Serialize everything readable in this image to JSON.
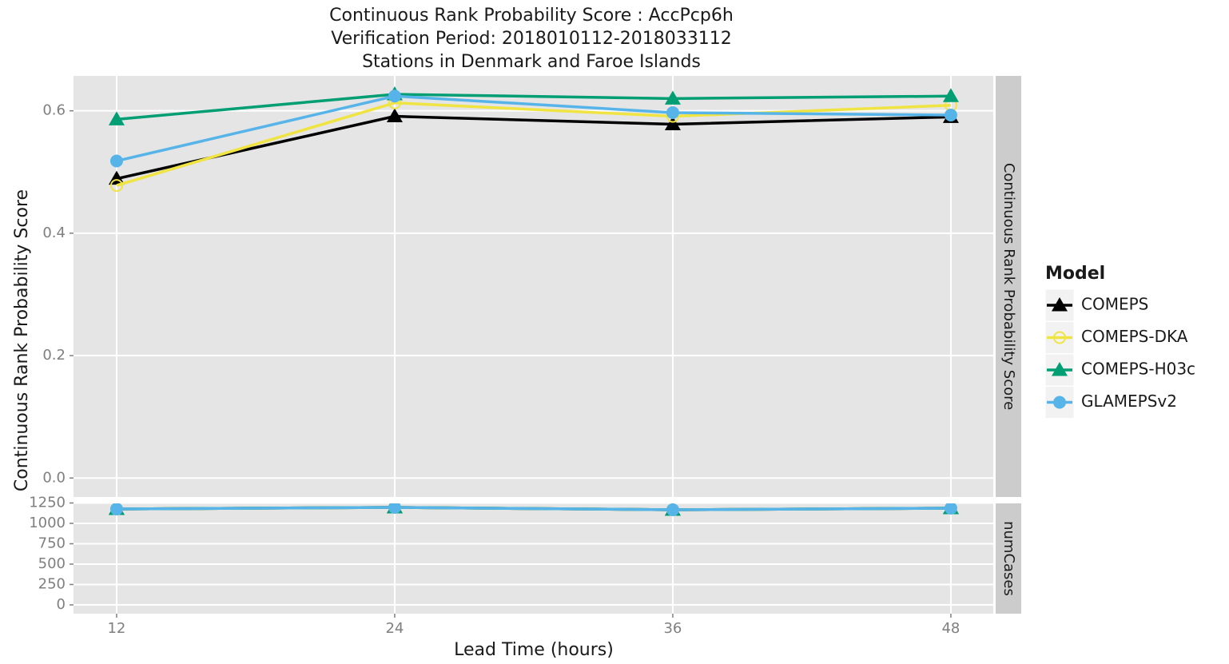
{
  "chart_data": [
    {
      "type": "line",
      "title": "Continuous Rank Probability Score : AccPcp6h",
      "subtitle": [
        "Verification Period: 2018010112-2018033112",
        "Stations in Denmark and Faroe Islands"
      ],
      "ylabel": "Continuous Rank Probability Score",
      "facet_label": "Continuous Rank Probability Score",
      "legend_title": "Model",
      "x": [
        12,
        24,
        36,
        48
      ],
      "xlim": [
        10.14,
        49.83
      ],
      "xticks": [
        12,
        24,
        36,
        48
      ],
      "ylim": [
        -0.031,
        0.657
      ],
      "yticks": [
        {
          "value": 0,
          "label": "0.0"
        },
        0.2,
        0.4,
        0.6
      ],
      "grid": true,
      "series": [
        {
          "name": "COMEPS",
          "color": "#000000",
          "marker": "triangle",
          "values": [
            0.489,
            0.591,
            0.578,
            0.59
          ]
        },
        {
          "name": "COMEPS-DKA",
          "color": "#f0e442",
          "marker": "open-circle",
          "values": [
            0.478,
            0.613,
            0.591,
            0.609
          ]
        },
        {
          "name": "COMEPS-H03c",
          "color": "#009e73",
          "marker": "triangle",
          "values": [
            0.586,
            0.627,
            0.62,
            0.624
          ]
        },
        {
          "name": "GLAMEPSv2",
          "color": "#56b4e9",
          "marker": "circle",
          "values": [
            0.518,
            0.624,
            0.597,
            0.593
          ]
        }
      ]
    },
    {
      "type": "line",
      "xlabel": "Lead Time (hours)",
      "facet_label": "numCases",
      "x": [
        12,
        24,
        36,
        48
      ],
      "xlim": [
        10.14,
        49.83
      ],
      "xticks": [
        12,
        24,
        36,
        48
      ],
      "ylim": [
        -108,
        1245
      ],
      "yticks": [
        0,
        250,
        500,
        750,
        1000,
        1250
      ],
      "grid": true,
      "series": [
        {
          "color": "#000000",
          "marker": "triangle",
          "values": [
            1176,
            1196,
            1167,
            1186
          ]
        },
        {
          "color": "#f0e442",
          "marker": "open-circle",
          "values": [
            1176,
            1196,
            1167,
            1186
          ]
        },
        {
          "color": "#009e73",
          "marker": "triangle",
          "values": [
            1176,
            1196,
            1167,
            1186
          ]
        },
        {
          "color": "#56b4e9",
          "marker": "circle",
          "values": [
            1176,
            1196,
            1167,
            1186
          ]
        }
      ]
    }
  ]
}
